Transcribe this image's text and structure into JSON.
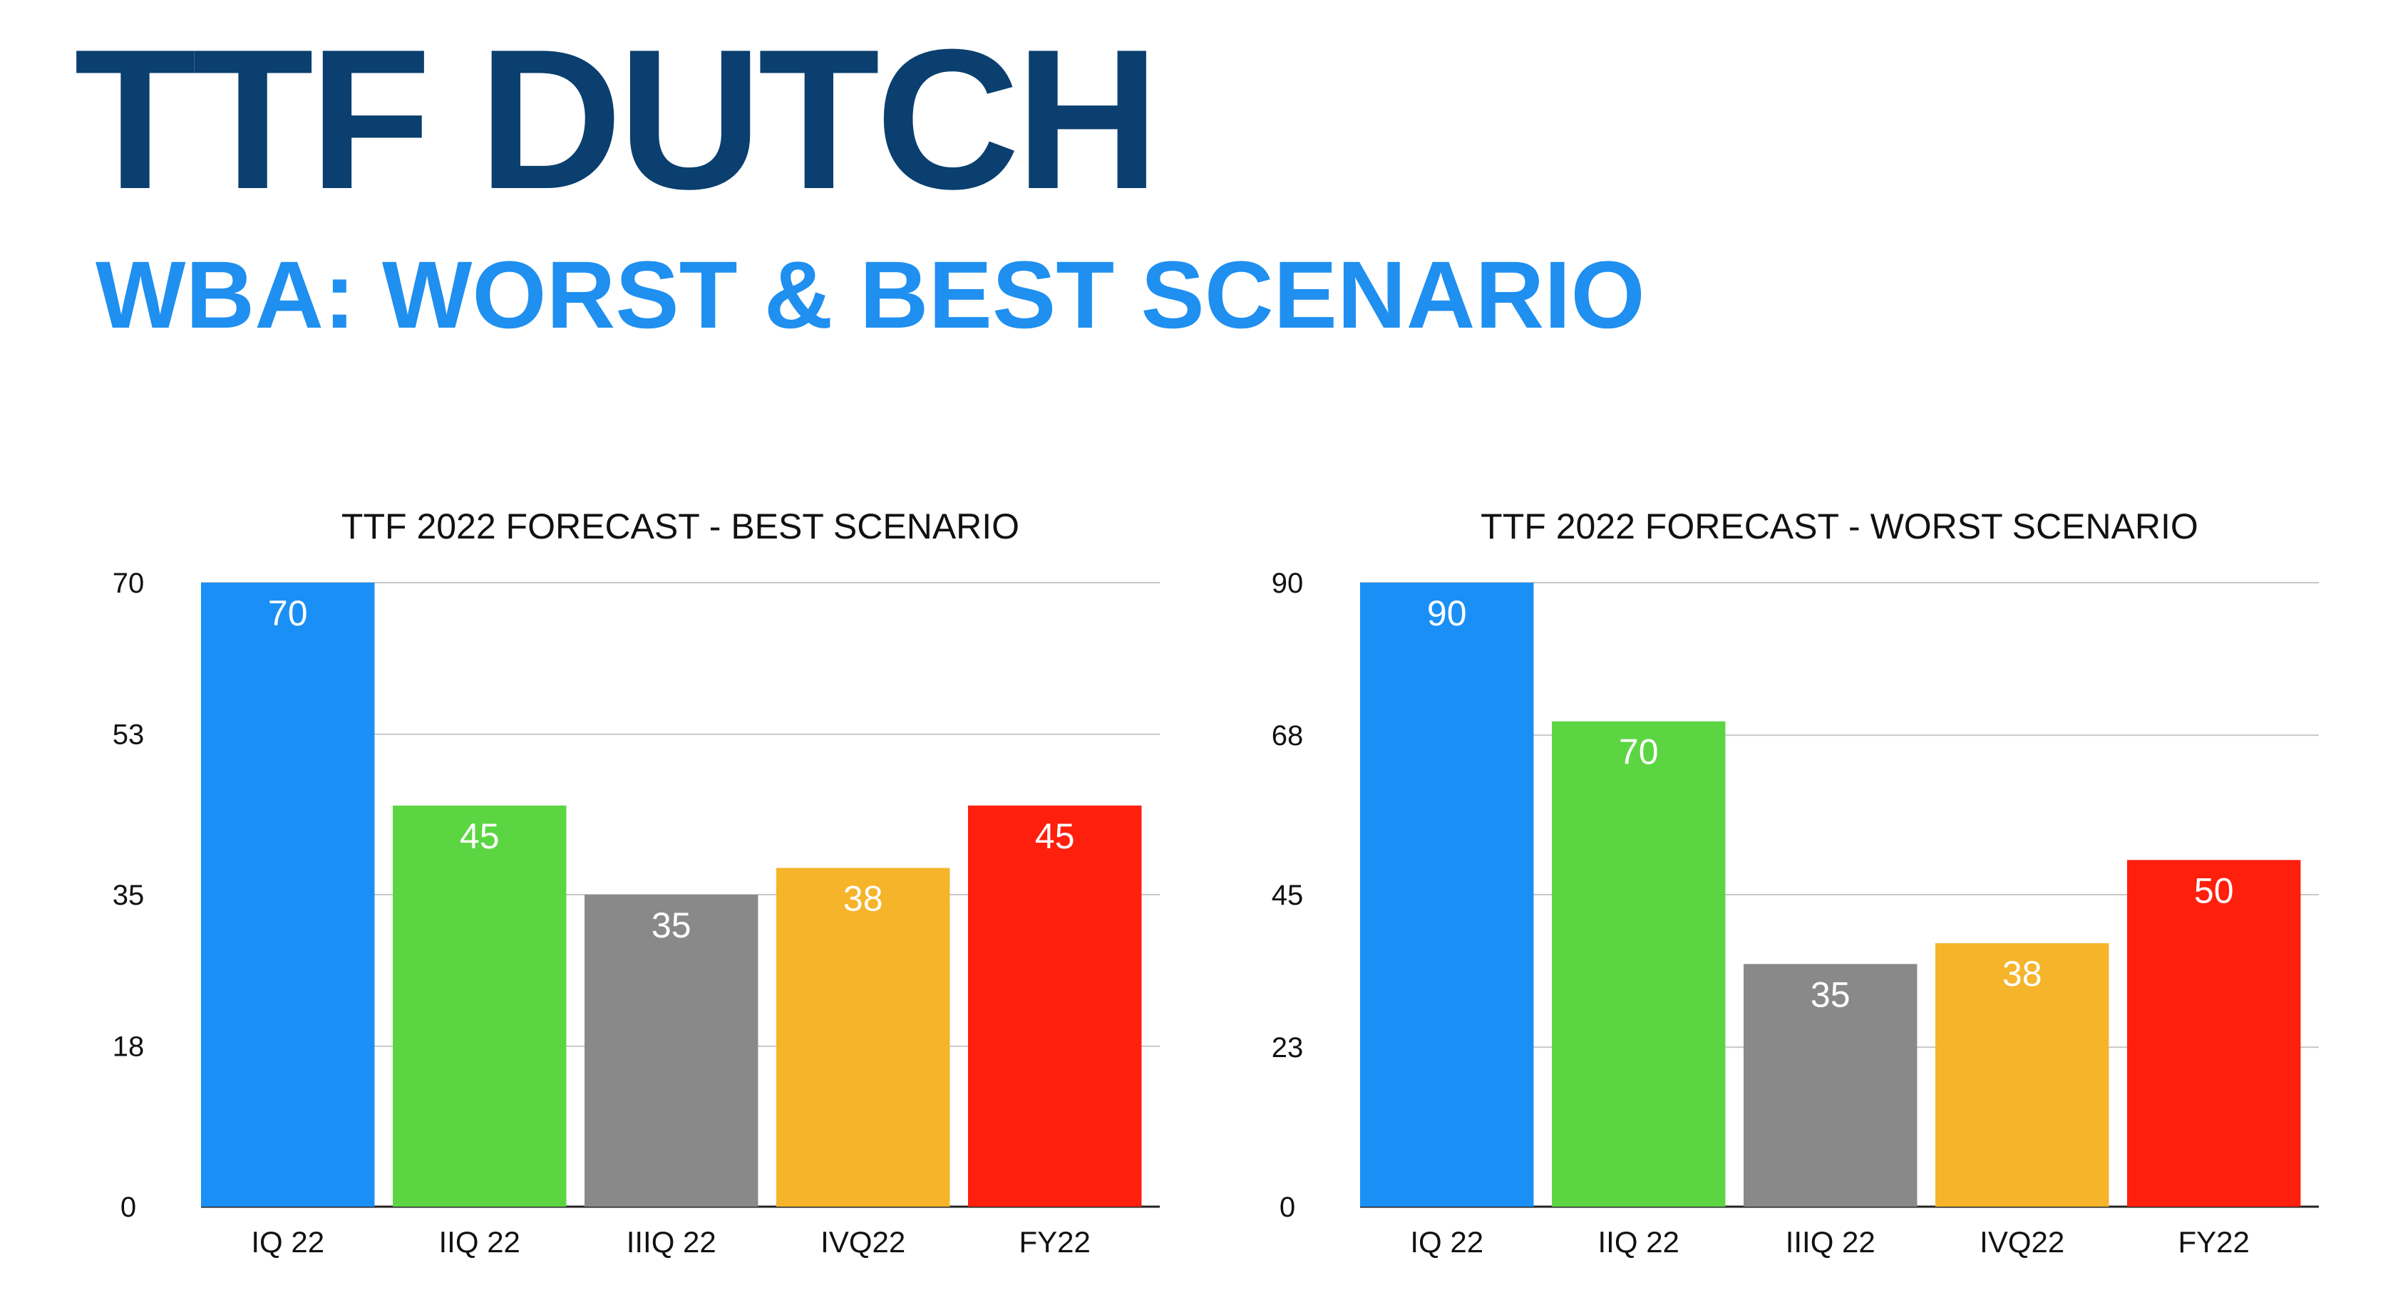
{
  "header": {
    "title": "TTF DUTCH",
    "subtitle": "WBA: WORST & BEST SCENARIO"
  },
  "chart_data": [
    {
      "type": "bar",
      "title": "TTF 2022 FORECAST  -   BEST SCENARIO",
      "categories": [
        "IQ 22",
        "IIQ 22",
        "IIIQ 22",
        "IVQ22",
        "FY22"
      ],
      "values": [
        70,
        45,
        35,
        38,
        45
      ],
      "colors": [
        "#1a8ff5",
        "#5bd642",
        "#898989",
        "#f5b429",
        "#ff1f0d"
      ],
      "ylim": [
        0,
        70
      ],
      "yticks": [
        0,
        18,
        35,
        53,
        70
      ],
      "grid": true,
      "legend": "none"
    },
    {
      "type": "bar",
      "title": "TTF 2022 FORECAST  -   WORST SCENARIO",
      "categories": [
        "IQ 22",
        "IIQ 22",
        "IIIQ 22",
        "IVQ22",
        "FY22"
      ],
      "values": [
        90,
        70,
        35,
        38,
        50
      ],
      "colors": [
        "#1a8ff5",
        "#5bd642",
        "#898989",
        "#f5b429",
        "#ff1f0d"
      ],
      "ylim": [
        0,
        90
      ],
      "yticks": [
        0,
        23,
        45,
        68,
        90
      ],
      "grid": true,
      "legend": "none"
    }
  ]
}
